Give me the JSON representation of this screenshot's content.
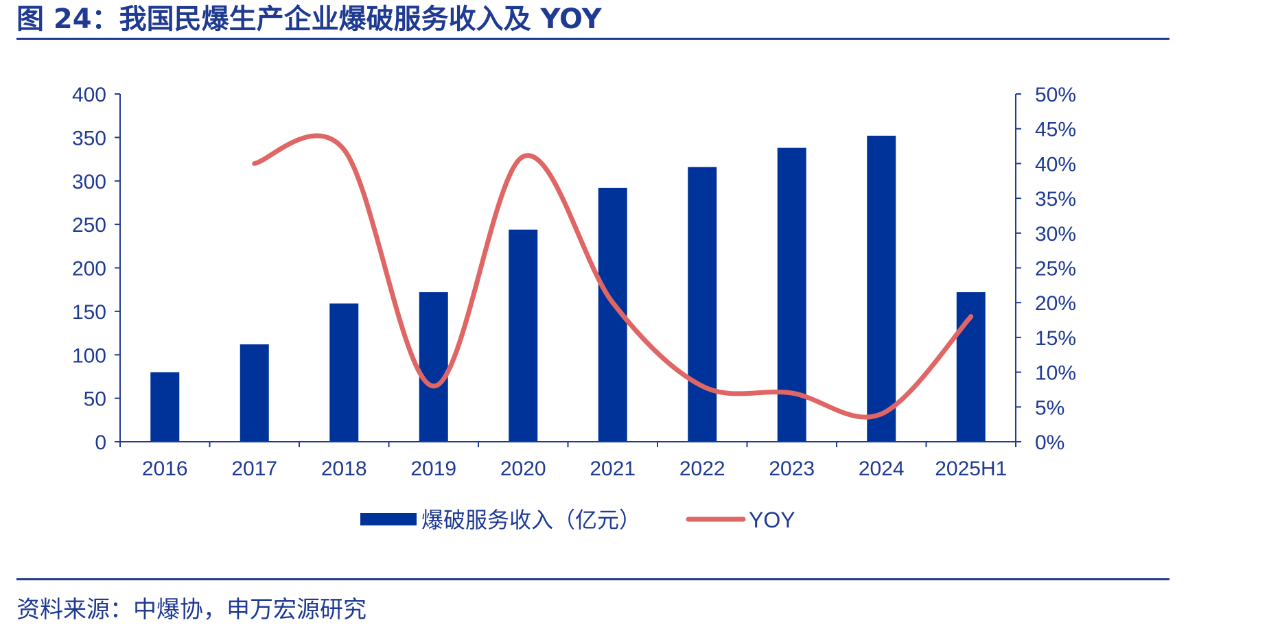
{
  "header": {
    "title": "图 24：我国民爆生产企业爆破服务收入及 YOY"
  },
  "footer": {
    "source": "资料来源：中爆协，申万宏源研究"
  },
  "colors": {
    "accent": "#1f3a93",
    "bar": "#003399",
    "line": "#e06666",
    "axis_text": "#1f3a93"
  },
  "chart_data": {
    "type": "bar",
    "categories": [
      "2016",
      "2017",
      "2018",
      "2019",
      "2020",
      "2021",
      "2022",
      "2023",
      "2024",
      "2025H1"
    ],
    "series": [
      {
        "name": "爆破服务收入（亿元）",
        "type": "bar",
        "axis": "left",
        "values": [
          80,
          112,
          159,
          172,
          244,
          292,
          316,
          338,
          352,
          172
        ]
      },
      {
        "name": "YOY",
        "type": "line",
        "axis": "right",
        "values": [
          null,
          0.4,
          0.42,
          0.08,
          0.41,
          0.2,
          0.08,
          0.07,
          0.04,
          0.18
        ]
      }
    ],
    "ylim": [
      0,
      400
    ],
    "y_ticks": [
      "0",
      "50",
      "100",
      "150",
      "200",
      "250",
      "300",
      "350",
      "400"
    ],
    "y2lim": [
      0,
      0.5
    ],
    "y2_ticks": [
      "0%",
      "5%",
      "10%",
      "15%",
      "20%",
      "25%",
      "30%",
      "35%",
      "40%",
      "45%",
      "50%"
    ],
    "legend_position": "bottom",
    "grid": false
  }
}
